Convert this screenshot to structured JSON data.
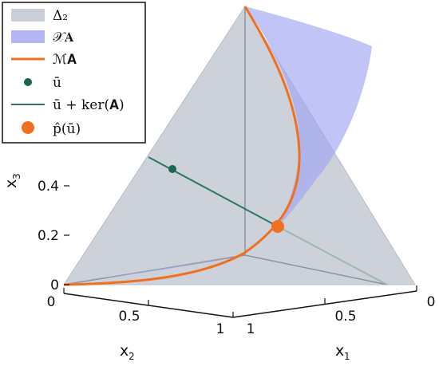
{
  "legend": {
    "items": [
      {
        "label": "Δ₂",
        "swatch": "patch",
        "color": "#c9ced8"
      },
      {
        "label": "𝒳𝐀",
        "swatch": "patch",
        "color": "#b3b6f2"
      },
      {
        "label": "ℳ𝐀",
        "swatch": "line",
        "color": "#f07020"
      },
      {
        "label": "ū",
        "swatch": "dot",
        "color": "#1b6650"
      },
      {
        "label": "ū + ker(𝐀)",
        "swatch": "line",
        "color": "#2e7566"
      },
      {
        "label": "p̂(ū)",
        "swatch": "bigdot",
        "color": "#f07020"
      }
    ]
  },
  "axes": {
    "x3": {
      "name": "x",
      "sub": "3",
      "ticks": [
        "0",
        "0.2",
        "0.4"
      ]
    },
    "x2": {
      "name": "x",
      "sub": "2",
      "ticks": [
        "0",
        "0.5",
        "1"
      ]
    },
    "x1": {
      "name": "x",
      "sub": "1",
      "ticks": [
        "1",
        "0.5",
        "0"
      ]
    }
  },
  "colors": {
    "simplex": "#c9ced8",
    "manifold_set": "#b3b6f2",
    "curve": "#f07020",
    "point_u": "#1b6650",
    "kernel_line": "#2e7566",
    "projection_point": "#f07020"
  }
}
